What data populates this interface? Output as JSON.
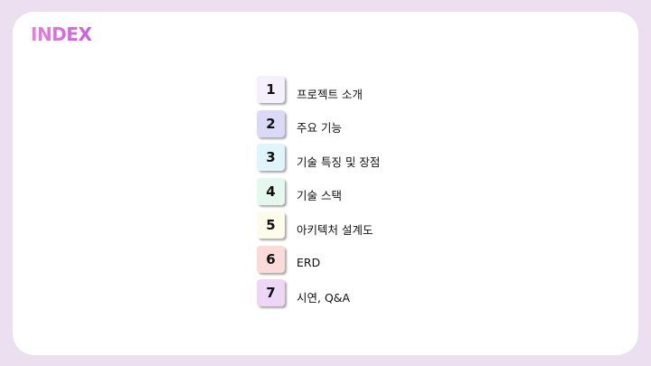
{
  "slide": {
    "title": "INDEX",
    "items": [
      {
        "number": "1",
        "label": "프로젝트 소개",
        "color": "#f6effc"
      },
      {
        "number": "2",
        "label": "주요 기능",
        "color": "#dbdaf6"
      },
      {
        "number": "3",
        "label": "기술 특징 및 장점",
        "color": "#dff4fb"
      },
      {
        "number": "4",
        "label": "기술 스택",
        "color": "#e5f8ee"
      },
      {
        "number": "5",
        "label": "아키텍처 설계도",
        "color": "#fdfbe9"
      },
      {
        "number": "6",
        "label": "ERD",
        "color": "#fbdada"
      },
      {
        "number": "7",
        "label": "시연, Q&A",
        "color": "#eed7f6"
      }
    ]
  },
  "colors": {
    "background": "#ebdff0",
    "card": "#ffffff",
    "title_accent": "#d66bd8"
  }
}
